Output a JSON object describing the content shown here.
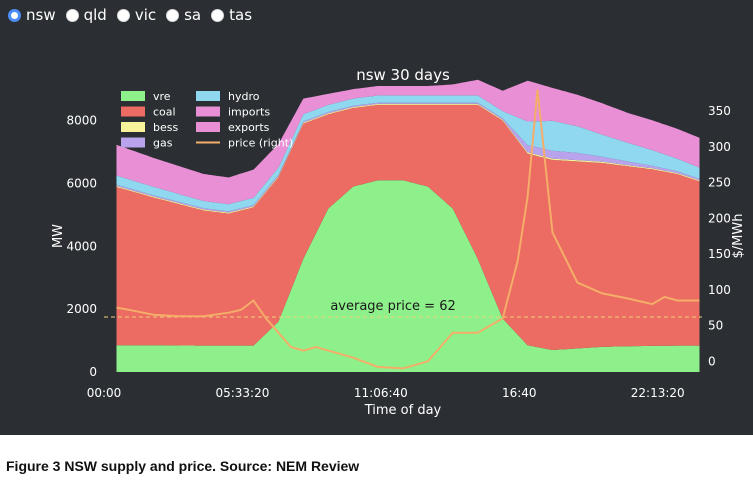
{
  "controls": {
    "regions": [
      {
        "label": "nsw",
        "selected": true
      },
      {
        "label": "qld",
        "selected": false
      },
      {
        "label": "vic",
        "selected": false
      },
      {
        "label": "sa",
        "selected": false
      },
      {
        "label": "tas",
        "selected": false
      }
    ]
  },
  "chart_data": {
    "type": "area",
    "title": "nsw 30 days",
    "xlabel": "Time of day",
    "ylabel": "MW",
    "y2label": "$/MWh",
    "x_ticks": [
      "00:00",
      "05:33:20",
      "11:06:40",
      "16:40",
      "22:13:20"
    ],
    "x_tick_hours": [
      0,
      5.5556,
      11.1111,
      16.6667,
      22.2222
    ],
    "xlim_hours": [
      0,
      24
    ],
    "ylim": [
      0,
      9100
    ],
    "y_ticks": [
      0,
      2000,
      4000,
      6000,
      8000
    ],
    "y2lim": [
      -15,
      385
    ],
    "y2_ticks": [
      0,
      50,
      100,
      150,
      200,
      250,
      300,
      350
    ],
    "x_hours": [
      0,
      2,
      4,
      5,
      6,
      7,
      8,
      9,
      10,
      11,
      12,
      13,
      14,
      15,
      16,
      17,
      18,
      19,
      20,
      21,
      22,
      23,
      24
    ],
    "series": [
      {
        "name": "vre",
        "color": "#8ef08a",
        "values": [
          850,
          850,
          840,
          840,
          840,
          1600,
          3600,
          5200,
          5900,
          6100,
          6100,
          5900,
          5200,
          3600,
          1700,
          850,
          700,
          750,
          800,
          820,
          830,
          840,
          840
        ]
      },
      {
        "name": "coal",
        "color": "#ec6b62",
        "values": [
          5150,
          4700,
          4300,
          4200,
          4400,
          4600,
          4300,
          3000,
          2500,
          2400,
          2400,
          2600,
          3300,
          4900,
          6300,
          6100,
          6050,
          5950,
          5850,
          5730,
          5620,
          5460,
          5200
        ]
      },
      {
        "name": "bess",
        "color": "#f8f39a",
        "values": [
          30,
          30,
          30,
          30,
          30,
          30,
          30,
          30,
          30,
          30,
          30,
          30,
          30,
          30,
          30,
          40,
          40,
          40,
          40,
          30,
          30,
          30,
          30
        ]
      },
      {
        "name": "gas",
        "color": "#b8a3ec",
        "values": [
          40,
          40,
          40,
          40,
          40,
          40,
          40,
          40,
          40,
          40,
          40,
          40,
          40,
          40,
          40,
          230,
          250,
          230,
          160,
          120,
          80,
          60,
          50
        ]
      },
      {
        "name": "hydro",
        "color": "#8fd8f0",
        "values": [
          300,
          270,
          230,
          230,
          230,
          230,
          230,
          230,
          230,
          230,
          230,
          230,
          230,
          230,
          230,
          750,
          950,
          850,
          700,
          600,
          500,
          400,
          350
        ]
      },
      {
        "name": "imports",
        "color": "#e88fd6",
        "values": [
          1000,
          920,
          860,
          850,
          900,
          750,
          500,
          350,
          300,
          300,
          300,
          300,
          350,
          500,
          650,
          1300,
          1050,
          1000,
          1000,
          950,
          950,
          950,
          950
        ]
      }
    ],
    "legend_entries": [
      "vre",
      "coal",
      "bess",
      "gas",
      "hydro",
      "imports",
      "exports",
      "price (right)"
    ],
    "exports_color": "#e88fd6",
    "price": {
      "name": "price (right)",
      "color": "#f5ad6a",
      "x_hours": [
        0,
        1,
        2,
        3,
        4,
        5,
        5.5,
        6,
        6.5,
        7,
        7.5,
        8,
        8.5,
        9,
        10,
        11,
        12,
        13,
        14,
        15,
        16,
        16.6,
        17,
        17.4,
        17.7,
        18,
        19,
        20,
        21,
        22,
        22.5,
        23,
        24
      ],
      "values": [
        78,
        72,
        65,
        63,
        63,
        68,
        72,
        85,
        60,
        40,
        20,
        15,
        20,
        15,
        5,
        -8,
        -10,
        0,
        40,
        40,
        60,
        140,
        230,
        380,
        280,
        180,
        110,
        95,
        88,
        80,
        90,
        85,
        85
      ]
    },
    "annotation": {
      "text": "average price = 62",
      "value": 62
    }
  },
  "caption": "Figure 3 NSW supply and price. Source: NEM Review"
}
